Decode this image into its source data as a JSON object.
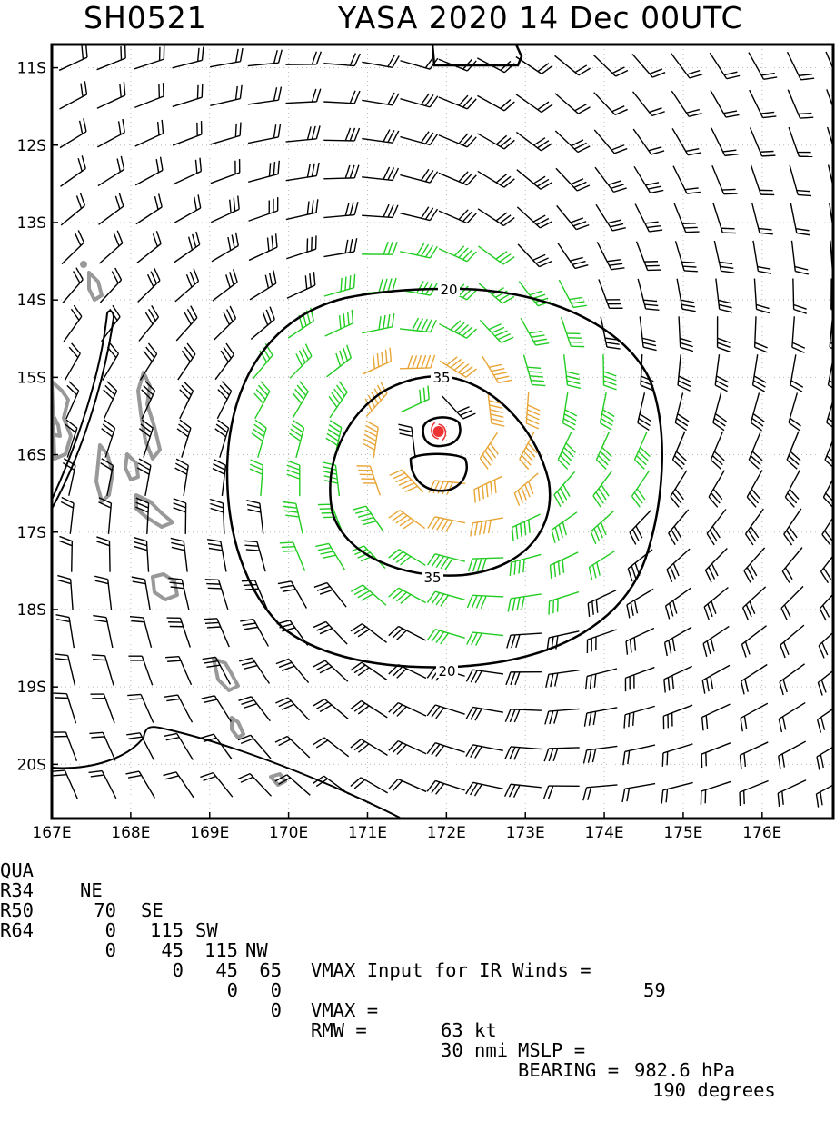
{
  "title": {
    "left": "SH0521",
    "right": "YASA 2020 14 Dec 00UTC"
  },
  "colors": {
    "frame": "#000000",
    "barb_low": "#000000",
    "barb_34": "#22cc22",
    "barb_50": "#e8a535",
    "land": "#999999",
    "contour": "#000000",
    "center": "#ee3333",
    "grid": "#bbbbbb"
  },
  "chart_data": {
    "type": "wind-barb map",
    "lat_ticks": [
      "11S",
      "12S",
      "13S",
      "14S",
      "15S",
      "16S",
      "17S",
      "18S",
      "19S",
      "20S"
    ],
    "lon_ticks": [
      "167E",
      "168E",
      "169E",
      "170E",
      "171E",
      "172E",
      "173E",
      "174E",
      "175E",
      "176E"
    ],
    "lat_range": [
      -20.7,
      -10.7
    ],
    "lon_range": [
      167.0,
      176.9
    ],
    "grid": true,
    "contours": [
      {
        "label": "20",
        "value": 20
      },
      {
        "label": "35",
        "value": 35
      }
    ],
    "center": {
      "lat": -15.7,
      "lon": 171.9
    }
  },
  "footer": {
    "header": {
      "qua": "QUA",
      "ne": "NE",
      "se": "SE",
      "sw": "SW",
      "nw": "NW",
      "text": "VMAX Input for IR Winds =",
      "value": "59"
    },
    "r34": {
      "label": "R34",
      "ne": "70",
      "se": "115",
      "sw": "115",
      "nw": "65"
    },
    "r50": {
      "label": "R50",
      "ne": "0",
      "se": "45",
      "sw": "45",
      "nw": "0",
      "vmax": "VMAX =",
      "vmax_val": "63 kt",
      "mslp": "MSLP =",
      "mslp_val": "982.6 hPa"
    },
    "r64": {
      "label": "R64",
      "ne": "0",
      "se": "0",
      "sw": "0",
      "nw": "0",
      "rmw": "RMW =",
      "rmw_val": "30 nmi",
      "bearing": "BEARING =",
      "bearing_val": "190 degrees"
    }
  }
}
